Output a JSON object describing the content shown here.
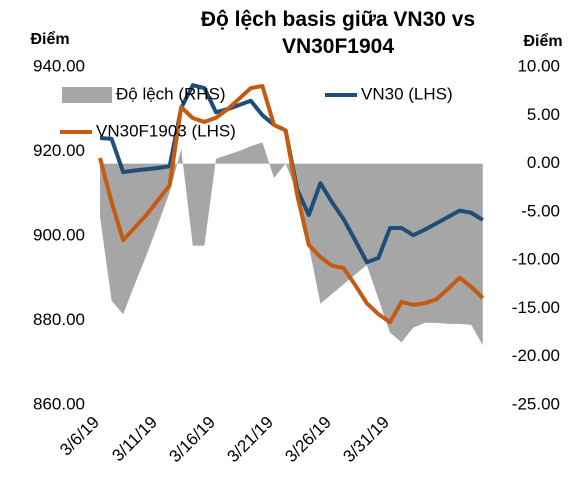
{
  "chart_data": {
    "type": "line",
    "title": "Độ lệch basis giữa VN30 vs VN30F1904",
    "y_axis_label": "Điểm",
    "y2_axis_label": "Điểm",
    "categories": [
      "3/6/19",
      null,
      null,
      null,
      null,
      "3/11/19",
      null,
      null,
      null,
      null,
      "3/16/19",
      null,
      null,
      null,
      null,
      "3/21/19",
      null,
      null,
      null,
      null,
      "3/26/19",
      null,
      null,
      null,
      null,
      "3/31/19",
      null,
      null,
      null,
      null,
      null,
      null,
      null,
      null
    ],
    "series": [
      {
        "name": "Độ lệch (RHS)",
        "type": "area",
        "axis": "y2",
        "color": "#a6a6a6",
        "values": [
          -5.5,
          -14.2,
          -15.6,
          -12.5,
          -9.5,
          -6.3,
          -3,
          1.5,
          -8.5,
          -8.5,
          0.5,
          0.9,
          1.3,
          1.8,
          2.2,
          -1.5,
          0,
          -3,
          -8.5,
          -14.5,
          -13.5,
          -12.5,
          -11.5,
          -10.5,
          -14,
          -17.5,
          -18.5,
          -17,
          -16.5,
          -16.5,
          -16.6,
          -16.6,
          -16.7,
          -18.8
        ]
      },
      {
        "name": "VN30 (LHS)",
        "type": "line",
        "color": "#1f4e79",
        "values": [
          923.2,
          923,
          915.1,
          915.5,
          915.8,
          916.1,
          916.5,
          930.3,
          935.7,
          935,
          929.3,
          930,
          931,
          932,
          928.6,
          926.3,
          925,
          911,
          905,
          912.5,
          908,
          904,
          899,
          893.8,
          894.8,
          901.9,
          901.9,
          900.2,
          901.5,
          903,
          904.5,
          906,
          905.5,
          903.8
        ]
      },
      {
        "name": "VN30F1903 (LHS)",
        "type": "line",
        "color": "#c55a11",
        "values": [
          918.5,
          908,
          899,
          902,
          905,
          908.5,
          912,
          930.5,
          927.9,
          927,
          928,
          930,
          932.5,
          935,
          935.5,
          926.3,
          925,
          909.7,
          897.9,
          895,
          893,
          892.4,
          888.4,
          884.1,
          881.5,
          879.6,
          884.4,
          883.7,
          884.1,
          885,
          887.5,
          890.1,
          888,
          885.3
        ]
      }
    ],
    "ylim": [
      860,
      940
    ],
    "yticks": [
      {
        "value": 860,
        "label": "860.00"
      },
      {
        "value": 880,
        "label": "880.00"
      },
      {
        "value": 900,
        "label": "900.00"
      },
      {
        "value": 920,
        "label": "920.00"
      },
      {
        "value": 940,
        "label": "940.00"
      }
    ],
    "y2lim": [
      -25,
      10
    ],
    "y2ticks": [
      {
        "value": -25,
        "label": "-25.00"
      },
      {
        "value": -20,
        "label": "-20.00"
      },
      {
        "value": -15,
        "label": "-15.00"
      },
      {
        "value": -10,
        "label": "-10.00"
      },
      {
        "value": -5,
        "label": "-5.00"
      },
      {
        "value": 0,
        "label": "0.00"
      },
      {
        "value": 5,
        "label": "5.00"
      },
      {
        "value": 10,
        "label": "10.00"
      }
    ],
    "grid": false
  }
}
